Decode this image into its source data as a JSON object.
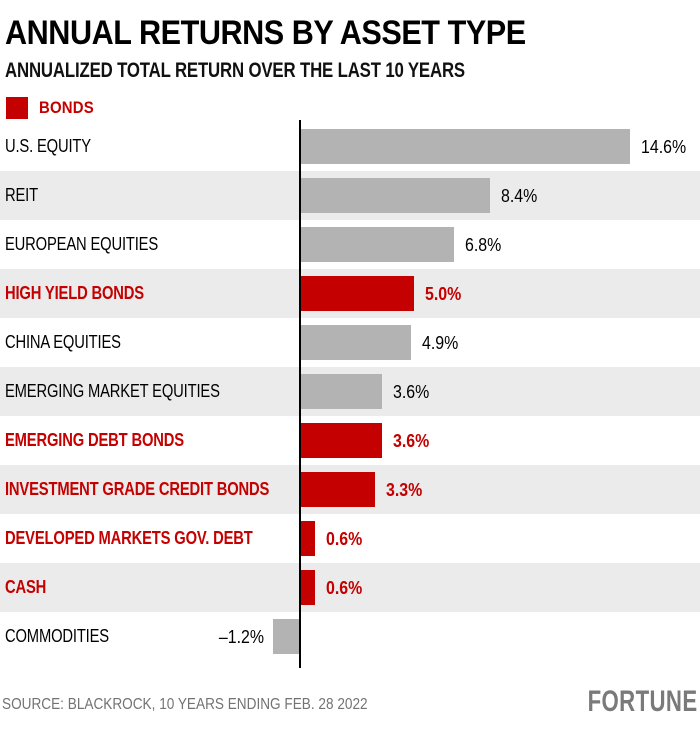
{
  "header": {
    "title": "ANNUAL RETURNS BY ASSET TYPE",
    "subtitle": "ANNUALIZED TOTAL RETURN OVER THE LAST 10 YEARS"
  },
  "legend": {
    "label": "BONDS",
    "color": "#c40000"
  },
  "colors": {
    "bond_red": "#c40000",
    "bar_gray": "#b3b3b3",
    "row_alt_bg": "#ebebeb",
    "axis_black": "#000000",
    "footer_gray": "#737373",
    "logo_gray": "#7a7a7a"
  },
  "chart_data": {
    "type": "bar",
    "orientation": "horizontal",
    "title": "ANNUAL RETURNS BY ASSET TYPE",
    "subtitle": "ANNUALIZED TOTAL RETURN OVER THE LAST 10 YEARS",
    "unit": "%",
    "xlim": [
      -1.5,
      15.5
    ],
    "baseline": 0,
    "grid": false,
    "legend_position": "top-left",
    "legend": [
      {
        "label": "BONDS",
        "color": "#c40000"
      }
    ],
    "bar_colors": {
      "bond": "#c40000",
      "other": "#b3b3b3"
    },
    "categories": [
      "U.S. EQUITY",
      "REIT",
      "EUROPEAN EQUITIES",
      "HIGH YIELD BONDS",
      "CHINA EQUITIES",
      "EMERGING MARKET EQUITIES",
      "EMERGING DEBT BONDS",
      "INVESTMENT GRADE CREDIT BONDS",
      "DEVELOPED MARKETS GOV. DEBT",
      "CASH",
      "COMMODITIES"
    ],
    "values": [
      14.6,
      8.4,
      6.8,
      5.0,
      4.9,
      3.6,
      3.6,
      3.3,
      0.6,
      0.6,
      -1.2
    ],
    "rows": [
      {
        "label": "U.S. EQUITY",
        "value": 14.6,
        "display": "14.6%",
        "bond": false
      },
      {
        "label": "REIT",
        "value": 8.4,
        "display": "8.4%",
        "bond": false
      },
      {
        "label": "EUROPEAN EQUITIES",
        "value": 6.8,
        "display": "6.8%",
        "bond": false
      },
      {
        "label": "HIGH YIELD BONDS",
        "value": 5.0,
        "display": "5.0%",
        "bond": true
      },
      {
        "label": "CHINA EQUITIES",
        "value": 4.9,
        "display": "4.9%",
        "bond": false
      },
      {
        "label": "EMERGING MARKET EQUITIES",
        "value": 3.6,
        "display": "3.6%",
        "bond": false
      },
      {
        "label": "EMERGING DEBT BONDS",
        "value": 3.6,
        "display": "3.6%",
        "bond": true
      },
      {
        "label": "INVESTMENT GRADE CREDIT BONDS",
        "value": 3.3,
        "display": "3.3%",
        "bond": true
      },
      {
        "label": "DEVELOPED MARKETS GOV. DEBT",
        "value": 0.6,
        "display": "0.6%",
        "bond": true
      },
      {
        "label": "CASH",
        "value": 0.6,
        "display": "0.6%",
        "bond": true
      },
      {
        "label": "COMMODITIES",
        "value": -1.2,
        "display": "–1.2%",
        "bond": false
      }
    ]
  },
  "footer": {
    "source": "SOURCE: BLACKROCK, 10 YEARS ENDING FEB. 28 2022",
    "brand": "FORTUNE"
  }
}
